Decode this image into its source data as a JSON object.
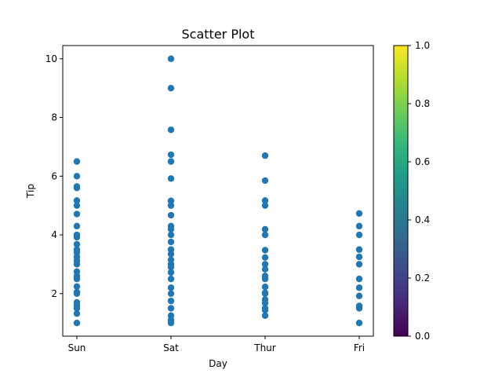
{
  "chart_data": {
    "type": "scatter",
    "title": "Scatter Plot",
    "xlabel": "Day",
    "ylabel": "Tip",
    "categories": [
      "Sun",
      "Sat",
      "Thur",
      "Fri"
    ],
    "ylim": [
      0.55,
      10.45
    ],
    "yticks": [
      2,
      4,
      6,
      8,
      10
    ],
    "grid": false,
    "point_color": "#1f77b4",
    "series": [
      {
        "points": [
          {
            "x": "Sun",
            "y": 1.0
          },
          {
            "x": "Sun",
            "y": 1.32
          },
          {
            "x": "Sun",
            "y": 1.5
          },
          {
            "x": "Sun",
            "y": 1.6
          },
          {
            "x": "Sun",
            "y": 1.7
          },
          {
            "x": "Sun",
            "y": 2.0
          },
          {
            "x": "Sun",
            "y": 2.05
          },
          {
            "x": "Sun",
            "y": 2.24
          },
          {
            "x": "Sun",
            "y": 2.5
          },
          {
            "x": "Sun",
            "y": 2.6
          },
          {
            "x": "Sun",
            "y": 2.75
          },
          {
            "x": "Sun",
            "y": 3.0
          },
          {
            "x": "Sun",
            "y": 3.12
          },
          {
            "x": "Sun",
            "y": 3.25
          },
          {
            "x": "Sun",
            "y": 3.4
          },
          {
            "x": "Sun",
            "y": 3.5
          },
          {
            "x": "Sun",
            "y": 3.68
          },
          {
            "x": "Sun",
            "y": 3.92
          },
          {
            "x": "Sun",
            "y": 4.0
          },
          {
            "x": "Sun",
            "y": 4.3
          },
          {
            "x": "Sun",
            "y": 4.71
          },
          {
            "x": "Sun",
            "y": 5.0
          },
          {
            "x": "Sun",
            "y": 5.17
          },
          {
            "x": "Sun",
            "y": 5.6
          },
          {
            "x": "Sun",
            "y": 5.65
          },
          {
            "x": "Sun",
            "y": 6.0
          },
          {
            "x": "Sun",
            "y": 6.5
          },
          {
            "x": "Sat",
            "y": 1.0
          },
          {
            "x": "Sat",
            "y": 1.1
          },
          {
            "x": "Sat",
            "y": 1.25
          },
          {
            "x": "Sat",
            "y": 1.5
          },
          {
            "x": "Sat",
            "y": 1.75
          },
          {
            "x": "Sat",
            "y": 2.0
          },
          {
            "x": "Sat",
            "y": 2.2
          },
          {
            "x": "Sat",
            "y": 2.5
          },
          {
            "x": "Sat",
            "y": 2.72
          },
          {
            "x": "Sat",
            "y": 2.9
          },
          {
            "x": "Sat",
            "y": 3.0
          },
          {
            "x": "Sat",
            "y": 3.15
          },
          {
            "x": "Sat",
            "y": 3.35
          },
          {
            "x": "Sat",
            "y": 3.5
          },
          {
            "x": "Sat",
            "y": 3.76
          },
          {
            "x": "Sat",
            "y": 4.0
          },
          {
            "x": "Sat",
            "y": 4.19
          },
          {
            "x": "Sat",
            "y": 4.3
          },
          {
            "x": "Sat",
            "y": 4.67
          },
          {
            "x": "Sat",
            "y": 5.0
          },
          {
            "x": "Sat",
            "y": 5.16
          },
          {
            "x": "Sat",
            "y": 5.92
          },
          {
            "x": "Sat",
            "y": 6.5
          },
          {
            "x": "Sat",
            "y": 6.73
          },
          {
            "x": "Sat",
            "y": 7.58
          },
          {
            "x": "Sat",
            "y": 9.0
          },
          {
            "x": "Sat",
            "y": 10.0
          },
          {
            "x": "Thur",
            "y": 1.25
          },
          {
            "x": "Thur",
            "y": 1.44
          },
          {
            "x": "Thur",
            "y": 1.5
          },
          {
            "x": "Thur",
            "y": 1.68
          },
          {
            "x": "Thur",
            "y": 1.8
          },
          {
            "x": "Thur",
            "y": 2.0
          },
          {
            "x": "Thur",
            "y": 2.03
          },
          {
            "x": "Thur",
            "y": 2.23
          },
          {
            "x": "Thur",
            "y": 2.5
          },
          {
            "x": "Thur",
            "y": 2.6
          },
          {
            "x": "Thur",
            "y": 2.83
          },
          {
            "x": "Thur",
            "y": 3.0
          },
          {
            "x": "Thur",
            "y": 3.23
          },
          {
            "x": "Thur",
            "y": 3.48
          },
          {
            "x": "Thur",
            "y": 4.0
          },
          {
            "x": "Thur",
            "y": 4.19
          },
          {
            "x": "Thur",
            "y": 5.0
          },
          {
            "x": "Thur",
            "y": 5.17
          },
          {
            "x": "Thur",
            "y": 5.85
          },
          {
            "x": "Thur",
            "y": 6.7
          },
          {
            "x": "Fri",
            "y": 1.0
          },
          {
            "x": "Fri",
            "y": 1.5
          },
          {
            "x": "Fri",
            "y": 1.58
          },
          {
            "x": "Fri",
            "y": 1.92
          },
          {
            "x": "Fri",
            "y": 2.2
          },
          {
            "x": "Fri",
            "y": 2.5
          },
          {
            "x": "Fri",
            "y": 3.0
          },
          {
            "x": "Fri",
            "y": 3.25
          },
          {
            "x": "Fri",
            "y": 3.5
          },
          {
            "x": "Fri",
            "y": 4.0
          },
          {
            "x": "Fri",
            "y": 4.3
          },
          {
            "x": "Fri",
            "y": 4.73
          }
        ]
      }
    ],
    "colorbar": {
      "colormap": "viridis",
      "range": [
        0.0,
        1.0
      ],
      "tick_values": [
        0.0,
        0.2,
        0.4,
        0.6,
        0.8,
        1.0
      ],
      "tick_labels": [
        "0.0",
        "0.2",
        "0.4",
        "0.6",
        "0.8",
        "1.0"
      ],
      "stops": [
        "#440154",
        "#482878",
        "#3e4989",
        "#31688e",
        "#26828e",
        "#1f9e89",
        "#35b779",
        "#6ece58",
        "#b5de2b",
        "#fde725"
      ]
    }
  }
}
